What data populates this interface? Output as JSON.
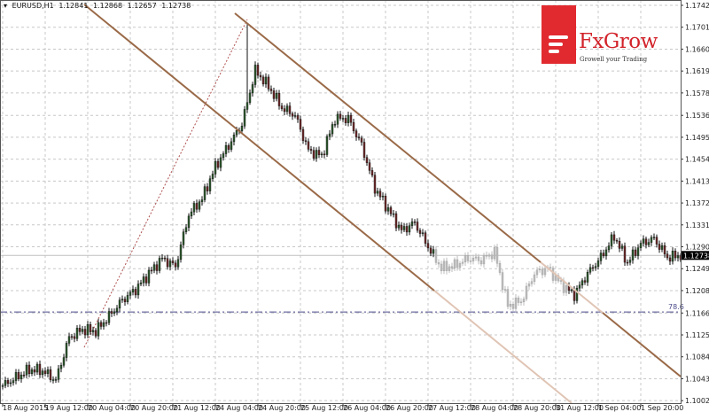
{
  "header": {
    "symbol": "EURUSD,H1",
    "open": "1.12841",
    "high": "1.12868",
    "low": "1.12657",
    "close": "1.12738"
  },
  "logo": {
    "name": "FxGrow",
    "tagline": "Growell your Trading"
  },
  "chart_data": {
    "type": "candlestick",
    "symbol": "EURUSD",
    "timeframe": "H1",
    "x_tick_labels": [
      "18 Aug 2015",
      "19 Aug 12:00",
      "20 Aug 04:00",
      "20 Aug 20:00",
      "21 Aug 12:00",
      "24 Aug 04:00",
      "24 Aug 20:00",
      "25 Aug 12:00",
      "26 Aug 04:00",
      "26 Aug 20:00",
      "27 Aug 12:00",
      "28 Aug 04:00",
      "28 Aug 20:00",
      "31 Aug 12:00",
      "1 Sep 04:00",
      "1 Sep 20:00"
    ],
    "y_tick_labels": [
      "1.17420",
      "1.17010",
      "1.16600",
      "1.16190",
      "1.15780",
      "1.15360",
      "1.14950",
      "1.14540",
      "1.14130",
      "1.13720",
      "1.13310",
      "1.12900",
      "1.12490",
      "1.12080",
      "1.11660",
      "1.11250",
      "1.10840",
      "1.10430",
      "1.10020"
    ],
    "ylim": [
      1.1002,
      1.1742
    ],
    "grid": true,
    "close_samples_every_5_bars": [
      1.103,
      1.1045,
      1.106,
      1.1058,
      1.104,
      1.112,
      1.1135,
      1.1132,
      1.116,
      1.119,
      1.121,
      1.124,
      1.1268,
      1.1253,
      1.135,
      1.138,
      1.144,
      1.148,
      1.152,
      1.162,
      1.159,
      1.155,
      1.1536,
      1.147,
      1.146,
      1.153,
      1.153,
      1.148,
      1.14,
      1.136,
      1.132,
      1.1335,
      1.129,
      1.125,
      1.1255,
      1.1268,
      1.1265,
      1.128,
      1.118,
      1.1188,
      1.124,
      1.125,
      1.122,
      1.12,
      1.124,
      1.127,
      1.131,
      1.126,
      1.1296,
      1.1305,
      1.127,
      1.12738
    ],
    "peak_high": 1.1708,
    "current_price": "1.12738",
    "fib_level": {
      "label": "78.6",
      "price": 1.1168
    },
    "colors": {
      "bull": "#2e5a2e",
      "bear": "#6e2a2a",
      "faded": "#bdbdbd",
      "channel": "#9a6a48",
      "channel_faded": "#e0c4b4",
      "fib": "#4a4a8a",
      "grid": "#c8c8c8"
    }
  }
}
